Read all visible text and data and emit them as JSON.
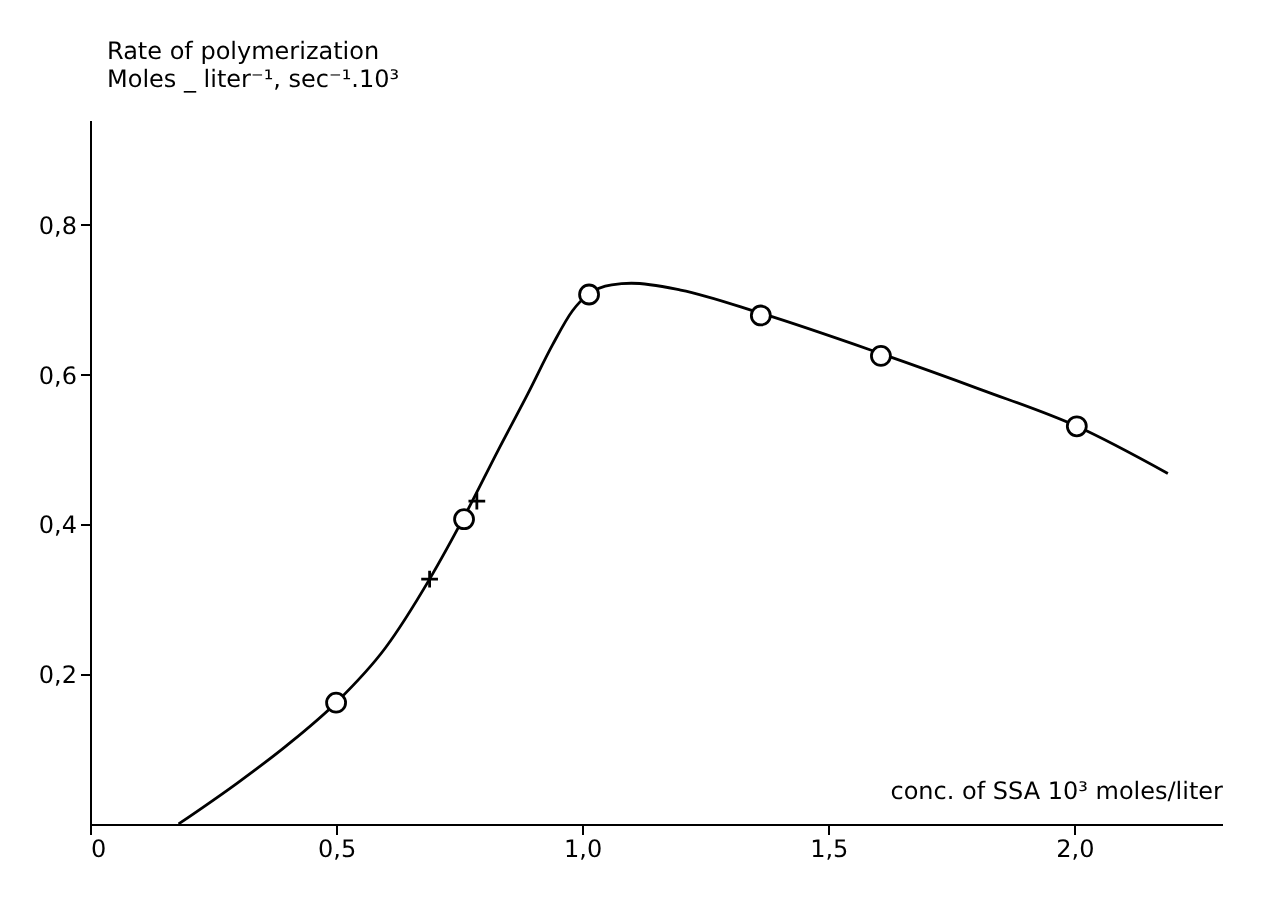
{
  "chart_data": {
    "type": "line",
    "xlabel": "conc. of SSA 10³ moles/liter",
    "ylabel": "Rate of polymerization\nMoles _ liter⁻¹, sec⁻¹.10³",
    "xlim": [
      0,
      2.3
    ],
    "ylim": [
      0,
      0.94
    ],
    "xticks": [
      {
        "value": 0,
        "label": "0"
      },
      {
        "value": 0.5,
        "label": "0,5"
      },
      {
        "value": 1.0,
        "label": "1,0"
      },
      {
        "value": 1.5,
        "label": "1,5"
      },
      {
        "value": 2.0,
        "label": "2,0"
      }
    ],
    "yticks": [
      {
        "value": 0.2,
        "label": "0,2"
      },
      {
        "value": 0.4,
        "label": "0,4"
      },
      {
        "value": 0.6,
        "label": "0,6"
      },
      {
        "value": 0.8,
        "label": "0,8"
      }
    ],
    "grid": false,
    "series": [
      {
        "color": "#000000",
        "marker": "none",
        "x": [
          0.18,
          0.3,
          0.4,
          0.5,
          0.6,
          0.69,
          0.76,
          0.83,
          0.89,
          0.94,
          0.98,
          1.014,
          1.06,
          1.1,
          1.2,
          1.363,
          1.607,
          1.81,
          2.005,
          2.19
        ],
        "values": [
          0,
          0.055,
          0.105,
          0.162,
          0.235,
          0.327,
          0.41,
          0.5,
          0.575,
          0.64,
          0.685,
          0.708,
          0.72,
          0.722,
          0.713,
          0.682,
          0.628,
          0.58,
          0.531,
          0.468
        ]
      },
      {
        "type": "scatter",
        "color": "#000000",
        "marker": "circle",
        "x": [
          0.5,
          0.76,
          1.014,
          1.363,
          1.607,
          2.005
        ],
        "values": [
          0.162,
          0.407,
          0.707,
          0.679,
          0.625,
          0.531
        ]
      },
      {
        "type": "scatter",
        "color": "#000000",
        "marker": "cross",
        "x": [
          0.69,
          0.786
        ],
        "values": [
          0.327,
          0.431
        ]
      }
    ]
  }
}
